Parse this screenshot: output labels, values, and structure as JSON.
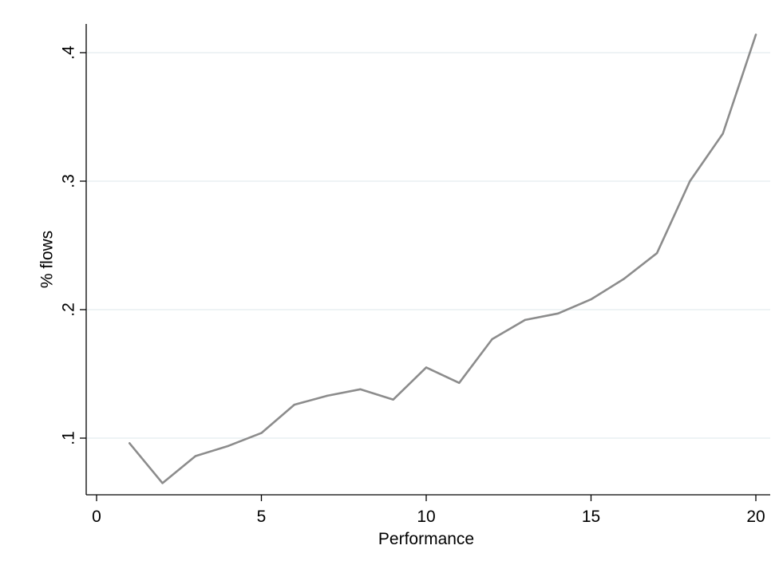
{
  "chart_data": {
    "type": "line",
    "title": "",
    "xlabel": "Performance",
    "ylabel": "% flows",
    "xlim": [
      0,
      20
    ],
    "ylim": [
      0.057,
      0.43
    ],
    "x_ticks": [
      0,
      5,
      10,
      15,
      20
    ],
    "x_tick_labels": [
      "0",
      "5",
      "10",
      "15",
      "20"
    ],
    "y_ticks": [
      0.1,
      0.2,
      0.3,
      0.4
    ],
    "y_tick_labels": [
      ".1",
      ".2",
      ".3",
      ".4"
    ],
    "grid": "horizontal",
    "series": [
      {
        "color": "#8c8c8c",
        "x": [
          1,
          2,
          3,
          4,
          5,
          6,
          7,
          8,
          9,
          10,
          11,
          12,
          13,
          14,
          15,
          16,
          17,
          18,
          19,
          20
        ],
        "y": [
          0.096,
          0.065,
          0.086,
          0.094,
          0.104,
          0.126,
          0.133,
          0.138,
          0.13,
          0.155,
          0.143,
          0.177,
          0.192,
          0.197,
          0.208,
          0.224,
          0.244,
          0.3,
          0.337,
          0.414
        ]
      }
    ]
  },
  "colors": {
    "line": "#8c8c8c",
    "grid": "#e3ecef",
    "axis": "#000000"
  }
}
